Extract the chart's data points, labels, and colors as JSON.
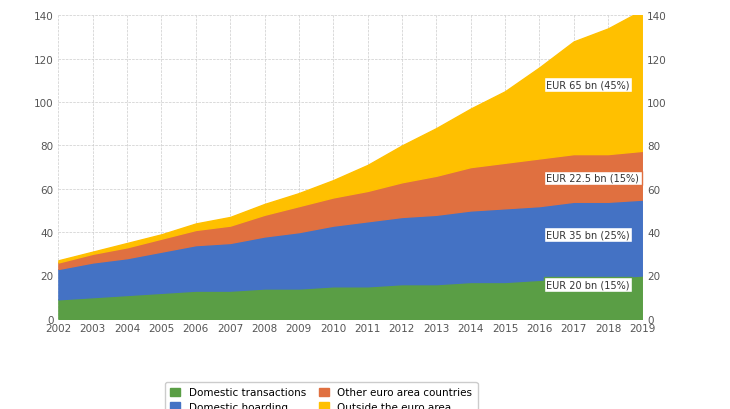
{
  "years": [
    2002,
    2003,
    2004,
    2005,
    2006,
    2007,
    2008,
    2009,
    2010,
    2011,
    2012,
    2013,
    2014,
    2015,
    2016,
    2017,
    2018,
    2019
  ],
  "domestic_transactions": [
    9,
    10,
    11,
    12,
    13,
    13,
    14,
    14,
    15,
    15,
    16,
    16,
    17,
    17,
    18,
    19,
    19,
    20
  ],
  "domestic_hoarding": [
    14,
    16,
    17,
    19,
    21,
    22,
    24,
    26,
    28,
    30,
    31,
    32,
    33,
    34,
    34,
    35,
    35,
    35
  ],
  "other_euro_area": [
    3,
    4,
    5,
    6,
    7,
    8,
    10,
    12,
    13,
    14,
    16,
    18,
    20,
    21,
    22,
    22,
    22,
    22.5
  ],
  "outside_euro_area": [
    1,
    1,
    2,
    2,
    3,
    4,
    5,
    6,
    8,
    12,
    17,
    22,
    27,
    33,
    42,
    52,
    58,
    65
  ],
  "color_domestic_transactions": "#5a9e45",
  "color_domestic_hoarding": "#4472c4",
  "color_other_euro_area": "#e07040",
  "color_outside_euro_area": "#ffc000",
  "annotation_domestic_transactions": "EUR 20 bn (15%)",
  "annotation_domestic_hoarding": "EUR 35 bn (25%)",
  "annotation_other_euro_area": "EUR 22.5 bn (15%)",
  "annotation_outside_euro_area": "EUR 65 bn (45%)",
  "border_domestic_transactions": "#5a9e45",
  "border_domestic_hoarding": "#4472c4",
  "border_other_euro_area": "#e07040",
  "border_outside_euro_area": "#ffc000",
  "legend_domestic_transactions": "Domestic transactions",
  "legend_domestic_hoarding": "Domestic hoarding",
  "legend_other_euro_area": "Other euro area countries",
  "legend_outside_euro_area": "Outside the euro area",
  "ylim": [
    0,
    140
  ],
  "yticks": [
    0,
    20,
    40,
    60,
    80,
    100,
    120,
    140
  ],
  "background_color": "#ffffff",
  "grid_color": "#cccccc"
}
